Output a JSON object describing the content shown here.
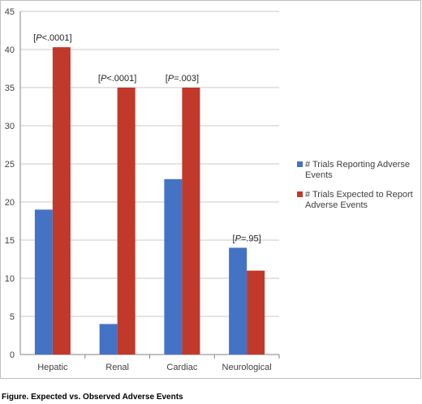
{
  "caption": "Figure. Expected vs. Observed Adverse Events",
  "chart_data": {
    "type": "bar",
    "categories": [
      "Hepatic",
      "Renal",
      "Cardiac",
      "Neurological"
    ],
    "series": [
      {
        "name": "# Trials Reporting Adverse Events",
        "values": [
          19,
          4,
          23,
          14
        ],
        "color": "#4472C4"
      },
      {
        "name": "# Trials Expected to Report Adverse Events",
        "values": [
          40.3,
          35,
          35,
          11
        ],
        "color": "#C0392B"
      }
    ],
    "annotations": [
      {
        "category": "Hepatic",
        "prefix": "[",
        "italic": "P",
        "suffix": "<.0001]"
      },
      {
        "category": "Renal",
        "prefix": "[",
        "italic": "P",
        "suffix": "<.0001]"
      },
      {
        "category": "Cardiac",
        "prefix": "[",
        "italic": "P",
        "suffix": "=.003]"
      },
      {
        "category": "Neurological",
        "prefix": "[",
        "italic": "P",
        "suffix": "=.95]"
      }
    ],
    "ylim": [
      0,
      45
    ],
    "yticks": [
      0,
      5,
      10,
      15,
      20,
      25,
      30,
      35,
      40,
      45
    ],
    "grid": true,
    "legend_position": "right",
    "title": "",
    "xlabel": "",
    "ylabel": ""
  }
}
